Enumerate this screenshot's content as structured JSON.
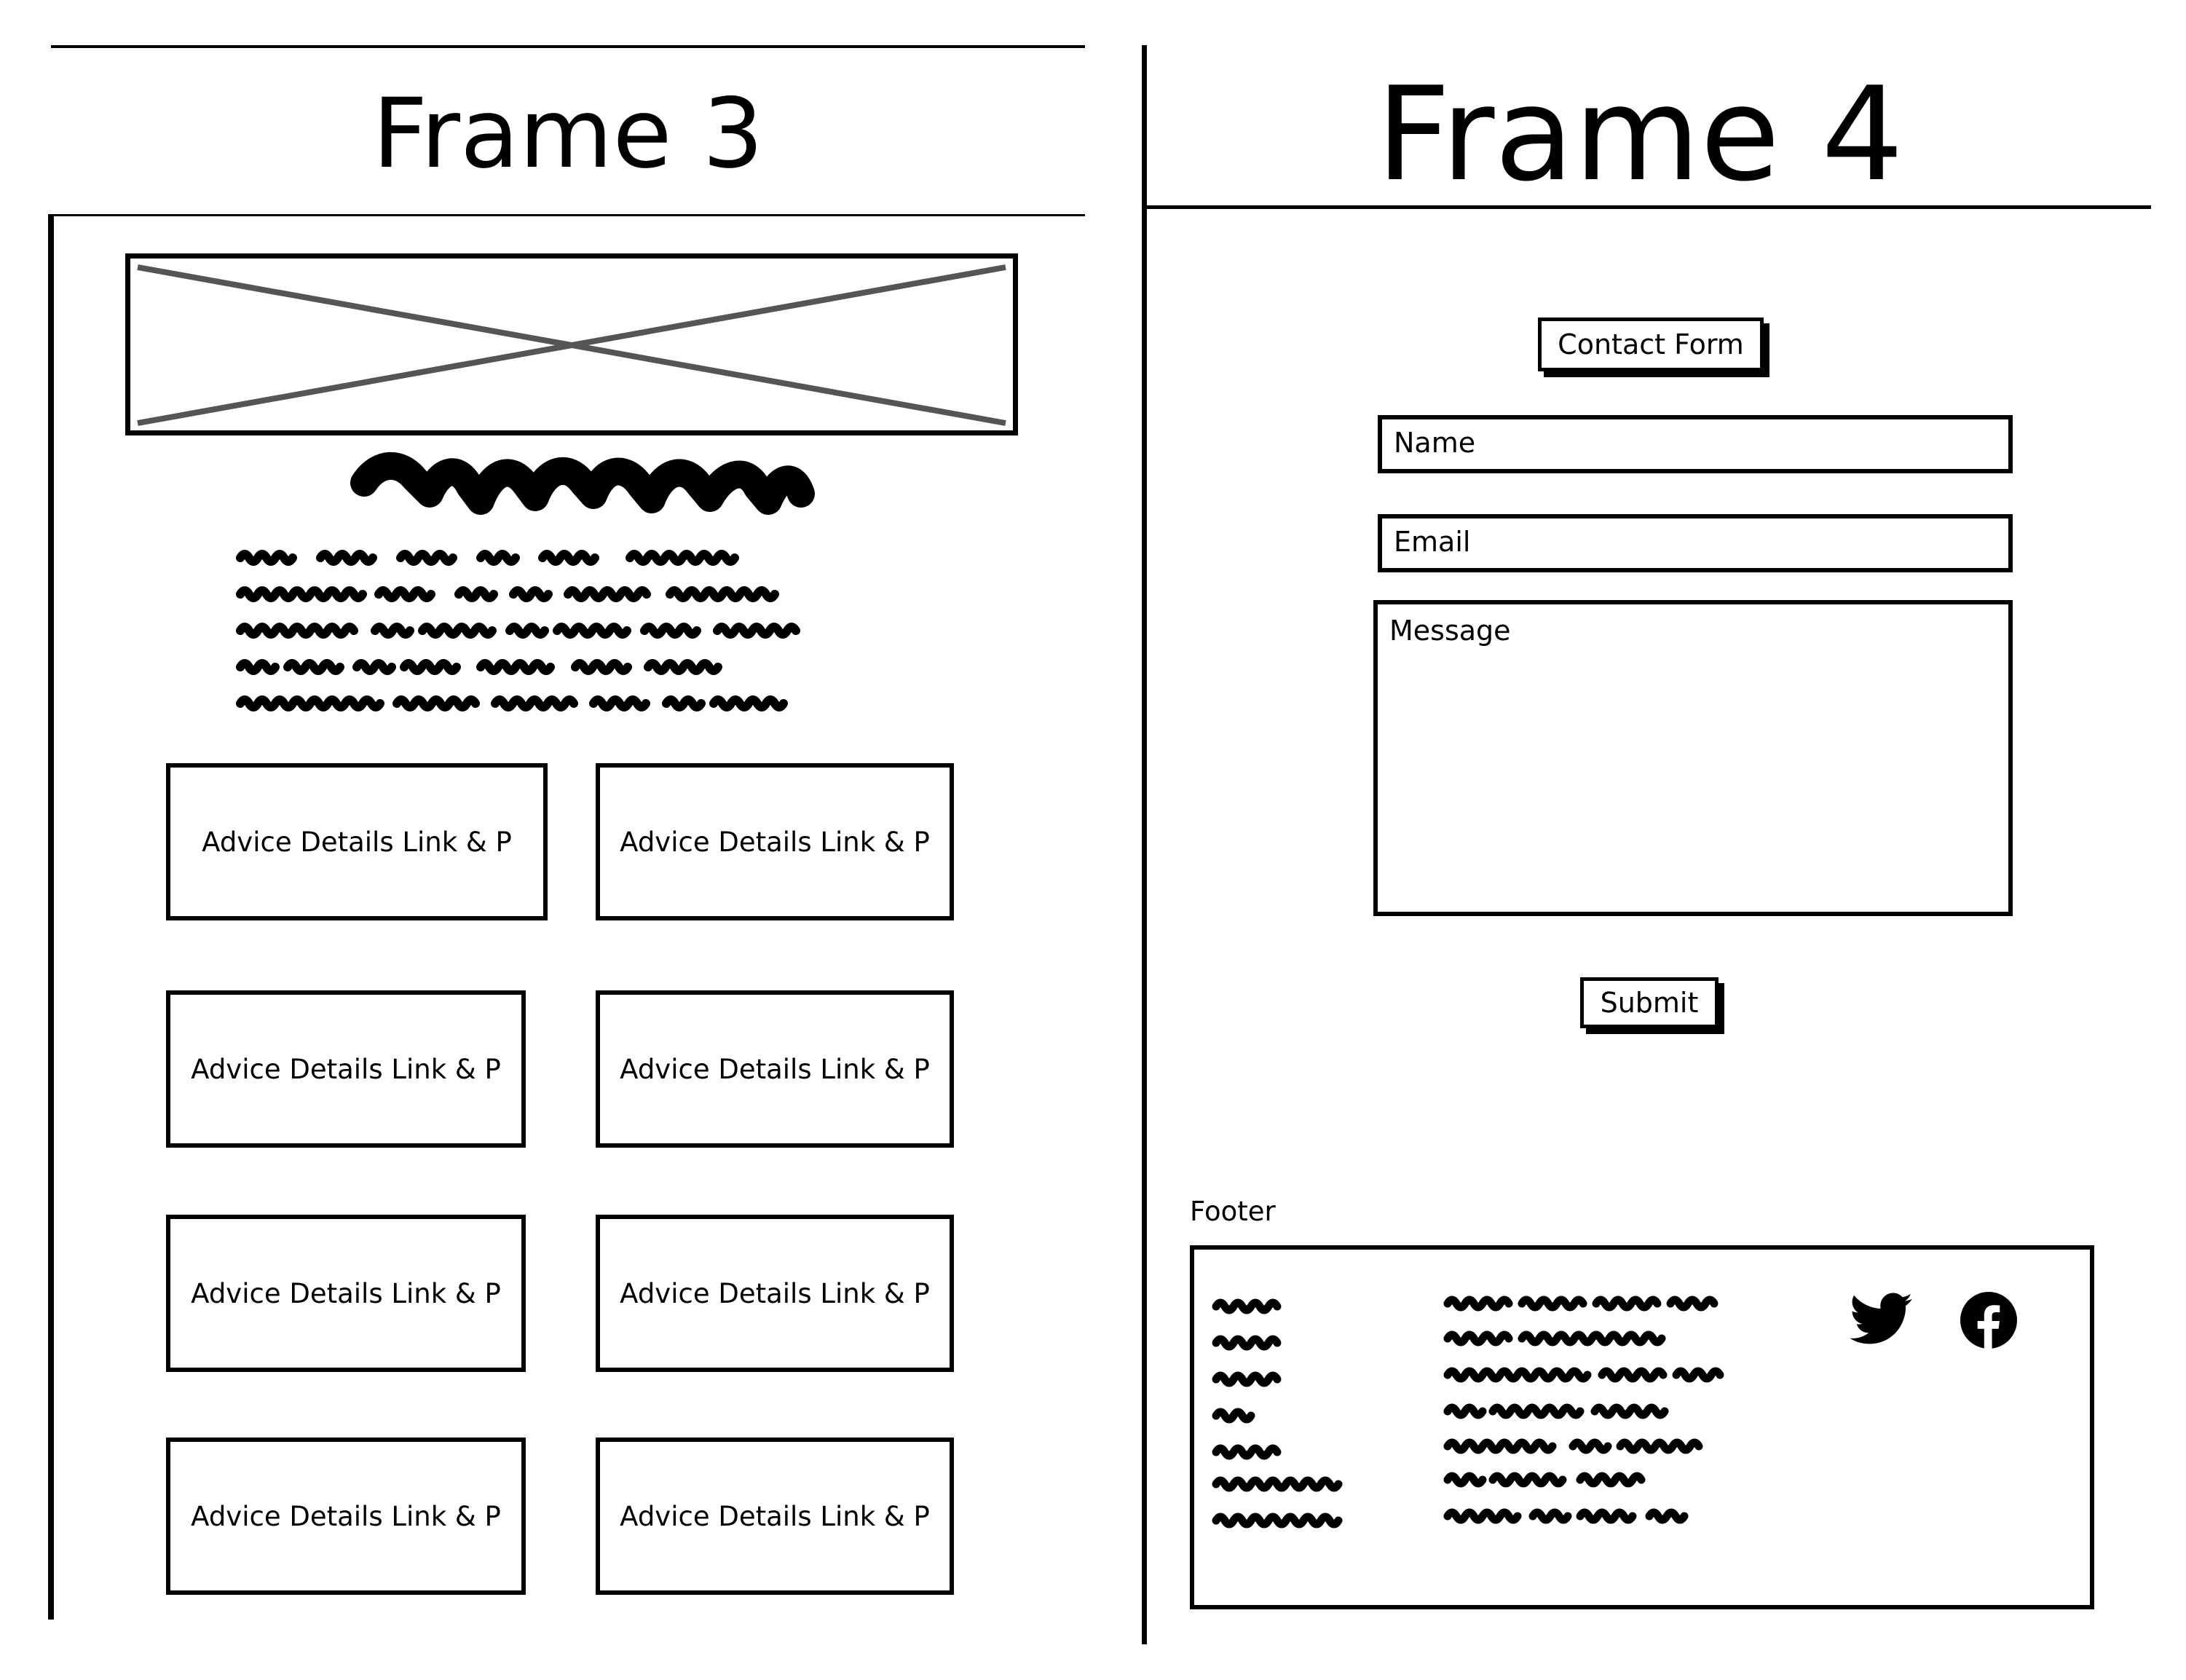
{
  "frame3": {
    "title": "Frame 3",
    "cards": [
      "Advice Details Link & P",
      "Advice Details Link & P",
      "Advice Details Link & P",
      "Advice Details Link & P",
      "Advice Details Link & P",
      "Advice Details Link & P",
      "Advice Details Link & P",
      "Advice Details Link & P"
    ]
  },
  "frame4": {
    "title": "Frame 4",
    "contact_form_label": "Contact Form",
    "name_placeholder": "Name",
    "email_placeholder": "Email",
    "message_placeholder": "Message",
    "submit_label": "Submit",
    "footer_label": "Footer",
    "footer_icons": [
      "twitter-icon",
      "facebook-icon"
    ]
  }
}
